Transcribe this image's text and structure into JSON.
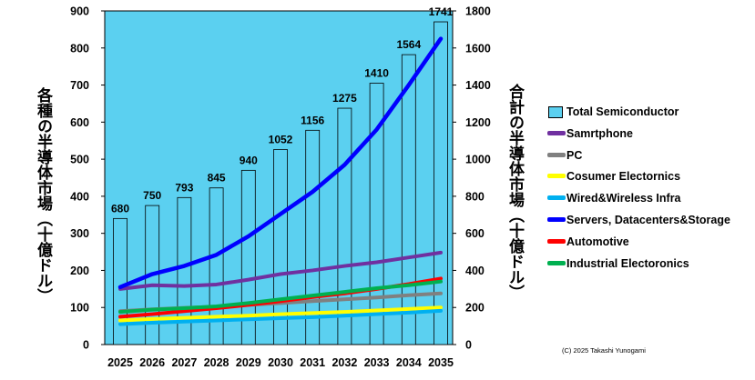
{
  "chart_data": {
    "type": "bar+line",
    "categories": [
      "2025",
      "2026",
      "2027",
      "2028",
      "2029",
      "2030",
      "2031",
      "2032",
      "2033",
      "2034",
      "2035"
    ],
    "bar_series": {
      "name": "Total Semiconductor",
      "axis": "right",
      "values": [
        680,
        750,
        793,
        845,
        940,
        1052,
        1156,
        1275,
        1410,
        1564,
        1741
      ],
      "data_labels": [
        "680",
        "750",
        "793",
        "845",
        "940",
        "1052",
        "1156",
        "1275",
        "1410",
        "1564",
        "1741"
      ],
      "color": "#5bd0f0"
    },
    "line_series": [
      {
        "name": "Samrtphone",
        "axis": "left",
        "color": "#7030a0",
        "values": [
          150,
          160,
          158,
          162,
          175,
          190,
          200,
          212,
          222,
          235,
          248
        ]
      },
      {
        "name": "PC",
        "axis": "left",
        "color": "#808080",
        "values": [
          90,
          95,
          99,
          102,
          107,
          112,
          117,
          122,
          127,
          133,
          138
        ]
      },
      {
        "name": "Cosumer Electornics",
        "axis": "left",
        "color": "#ffff00",
        "values": [
          65,
          69,
          72,
          75,
          78,
          82,
          85,
          88,
          92,
          96,
          100
        ]
      },
      {
        "name": "Wired&Wireless Infra",
        "axis": "left",
        "color": "#00b0f0",
        "values": [
          55,
          59,
          62,
          65,
          68,
          71,
          74,
          78,
          82,
          86,
          91
        ]
      },
      {
        "name": "Servers, Datacenters&Storage",
        "axis": "left",
        "color": "#0000ff",
        "values": [
          155,
          190,
          212,
          242,
          292,
          352,
          412,
          485,
          580,
          700,
          825
        ]
      },
      {
        "name": "Automotive",
        "axis": "left",
        "color": "#ff0000",
        "values": [
          75,
          82,
          90,
          98,
          107,
          117,
          128,
          138,
          150,
          163,
          178
        ]
      },
      {
        "name": "Industrial Electoronics",
        "axis": "left",
        "color": "#00b050",
        "values": [
          88,
          94,
          98,
          103,
          112,
          122,
          132,
          142,
          152,
          160,
          170
        ]
      }
    ],
    "ylabel_left": "各種の半導体市場（十億ドル）",
    "ylabel_right": "合計の半導体市場（十億ドル）",
    "y_left_ticks": [
      "0",
      "100",
      "200",
      "300",
      "400",
      "500",
      "600",
      "700",
      "800",
      "900"
    ],
    "y_right_ticks": [
      "0",
      "200",
      "400",
      "600",
      "800",
      "1000",
      "1200",
      "1400",
      "1600",
      "1800"
    ],
    "ylim_left": [
      0,
      900
    ],
    "ylim_right": [
      0,
      1800
    ],
    "legend_position": "right",
    "plot_background": "#5bd0f0",
    "grid": false
  },
  "copyright": "(C) 2025 Takashi Yunogami"
}
